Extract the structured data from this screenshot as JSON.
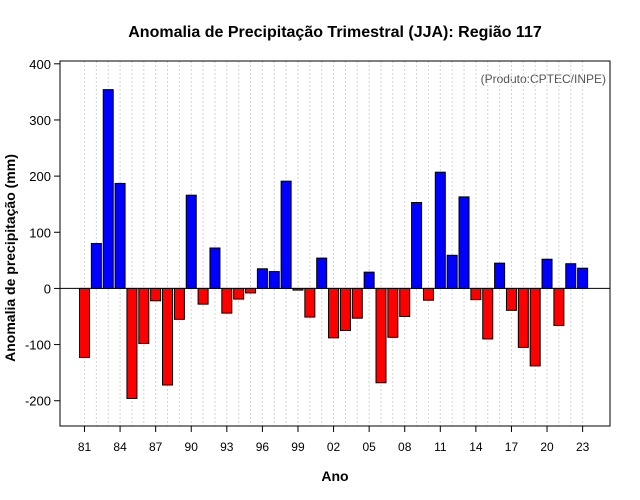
{
  "chart_data": {
    "type": "bar",
    "title": "Anomalia de Precipitação Trimestral (JJA): Região 117",
    "xlabel": "Ano",
    "ylabel": "Anomalia de precipitação (mm)",
    "credit": "(Produto:CPTEC/INPE)",
    "ylim": [
      -245,
      405
    ],
    "yticks": [
      "-200",
      "-100",
      "0",
      "100",
      "200",
      "300",
      "400"
    ],
    "xticks": [
      "81",
      "84",
      "87",
      "90",
      "93",
      "96",
      "99",
      "02",
      "05",
      "08",
      "11",
      "14",
      "17",
      "20",
      "23"
    ],
    "grid": true,
    "colors": {
      "positive": "#0000ff",
      "negative": "#ff0000"
    },
    "categories": [
      "1981",
      "1982",
      "1983",
      "1984",
      "1985",
      "1986",
      "1987",
      "1988",
      "1989",
      "1990",
      "1991",
      "1992",
      "1993",
      "1994",
      "1995",
      "1996",
      "1997",
      "1998",
      "1999",
      "2000",
      "2001",
      "2002",
      "2003",
      "2004",
      "2005",
      "2006",
      "2007",
      "2008",
      "2009",
      "2010",
      "2011",
      "2012",
      "2013",
      "2014",
      "2015",
      "2016",
      "2017",
      "2018",
      "2019",
      "2020",
      "2021",
      "2022",
      "2023"
    ],
    "values": [
      -123,
      80,
      354,
      187,
      -196,
      -98,
      -22,
      -172,
      -55,
      166,
      -28,
      72,
      -44,
      -19,
      -8,
      35,
      30,
      191,
      -3,
      -51,
      54,
      -88,
      -75,
      -53,
      29,
      -168,
      -87,
      -50,
      153,
      -21,
      207,
      59,
      163,
      -20,
      -90,
      45,
      -39,
      -105,
      -138,
      52,
      -66,
      44,
      36
    ]
  }
}
